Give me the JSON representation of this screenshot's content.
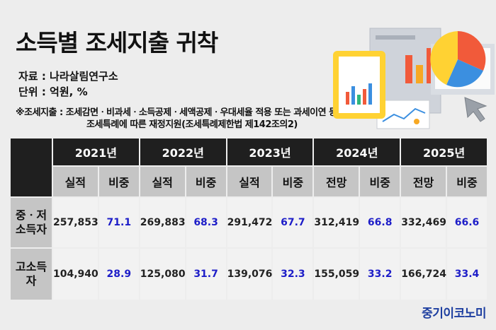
{
  "title": "소득별 조세지출 귀착",
  "source": "자료 : 나라살림연구소",
  "unit": "단위 : 억원, %",
  "note_line1": "※조세지출 : 조세감면ㆍ비과세ㆍ소득공제ㆍ세액공제ㆍ우대세율 적용 또는 과세이연 등",
  "note_line2": "조세특례에 따른 재정지원(조세특례제한법 제142조의2)",
  "brand": "중기이코노미",
  "colors": {
    "share": "#1d1dc8",
    "header_dark": "#1f1f1f",
    "header_light": "#c5c5c5",
    "background": "#ededed",
    "brand": "#1e3fa0"
  },
  "icons": [
    "report-chart-illustration",
    "pie-chart-illustration",
    "cursor-icon"
  ],
  "chart_data": {
    "type": "table",
    "years": [
      "2021년",
      "2022년",
      "2023년",
      "2024년",
      "2025년"
    ],
    "sub_headers": [
      "실적",
      "비중",
      "실적",
      "비중",
      "실적",
      "비중",
      "전망",
      "비중",
      "전망",
      "비중"
    ],
    "rows": [
      {
        "label_line1": "중ㆍ저",
        "label_line2": "소득자",
        "values": [
          "257,853",
          "269,883",
          "291,472",
          "312,419",
          "332,469"
        ],
        "shares": [
          "71.1",
          "68.3",
          "67.7",
          "66.8",
          "66.6"
        ]
      },
      {
        "label_line1": "고소득",
        "label_line2": "자",
        "values": [
          "104,940",
          "125,080",
          "139,076",
          "155,059",
          "166,724"
        ],
        "shares": [
          "28.9",
          "31.7",
          "32.3",
          "33.2",
          "33.4"
        ]
      }
    ]
  }
}
